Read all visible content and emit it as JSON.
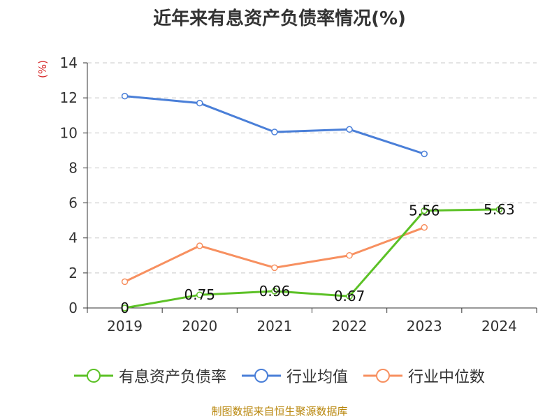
{
  "title": "近年来有息资产负债率情况(%)",
  "unit_label": "(%)",
  "source": "制图数据来自恒生聚源数据库",
  "colors": {
    "debt_ratio": "#5cc126",
    "industry_avg": "#4a7fd8",
    "industry_median": "#f79060",
    "grid": "#c8c8c8",
    "axis": "#333333"
  },
  "chart_data": {
    "type": "line",
    "title": "近年来有息资产负债率情况(%)",
    "xlabel": "",
    "ylabel": "(%)",
    "categories": [
      "2019",
      "2020",
      "2021",
      "2022",
      "2023",
      "2024"
    ],
    "yticks": [
      0,
      2,
      4,
      6,
      8,
      10,
      12,
      14
    ],
    "ylim": [
      0,
      14
    ],
    "grid": true,
    "legend_position": "bottom",
    "series": [
      {
        "name": "有息资产负债率",
        "color": "#5cc126",
        "values": [
          0,
          0.75,
          0.96,
          0.67,
          5.56,
          5.63
        ],
        "labels": [
          "0",
          "0.75",
          "0.96",
          "0.67",
          "5.56",
          "5.63"
        ]
      },
      {
        "name": "行业均值",
        "color": "#4a7fd8",
        "values": [
          12.1,
          11.7,
          10.05,
          10.2,
          8.8,
          null
        ],
        "labels": null
      },
      {
        "name": "行业中位数",
        "color": "#f79060",
        "values": [
          1.5,
          3.55,
          2.3,
          3.0,
          4.6,
          null
        ],
        "labels": null
      }
    ]
  }
}
